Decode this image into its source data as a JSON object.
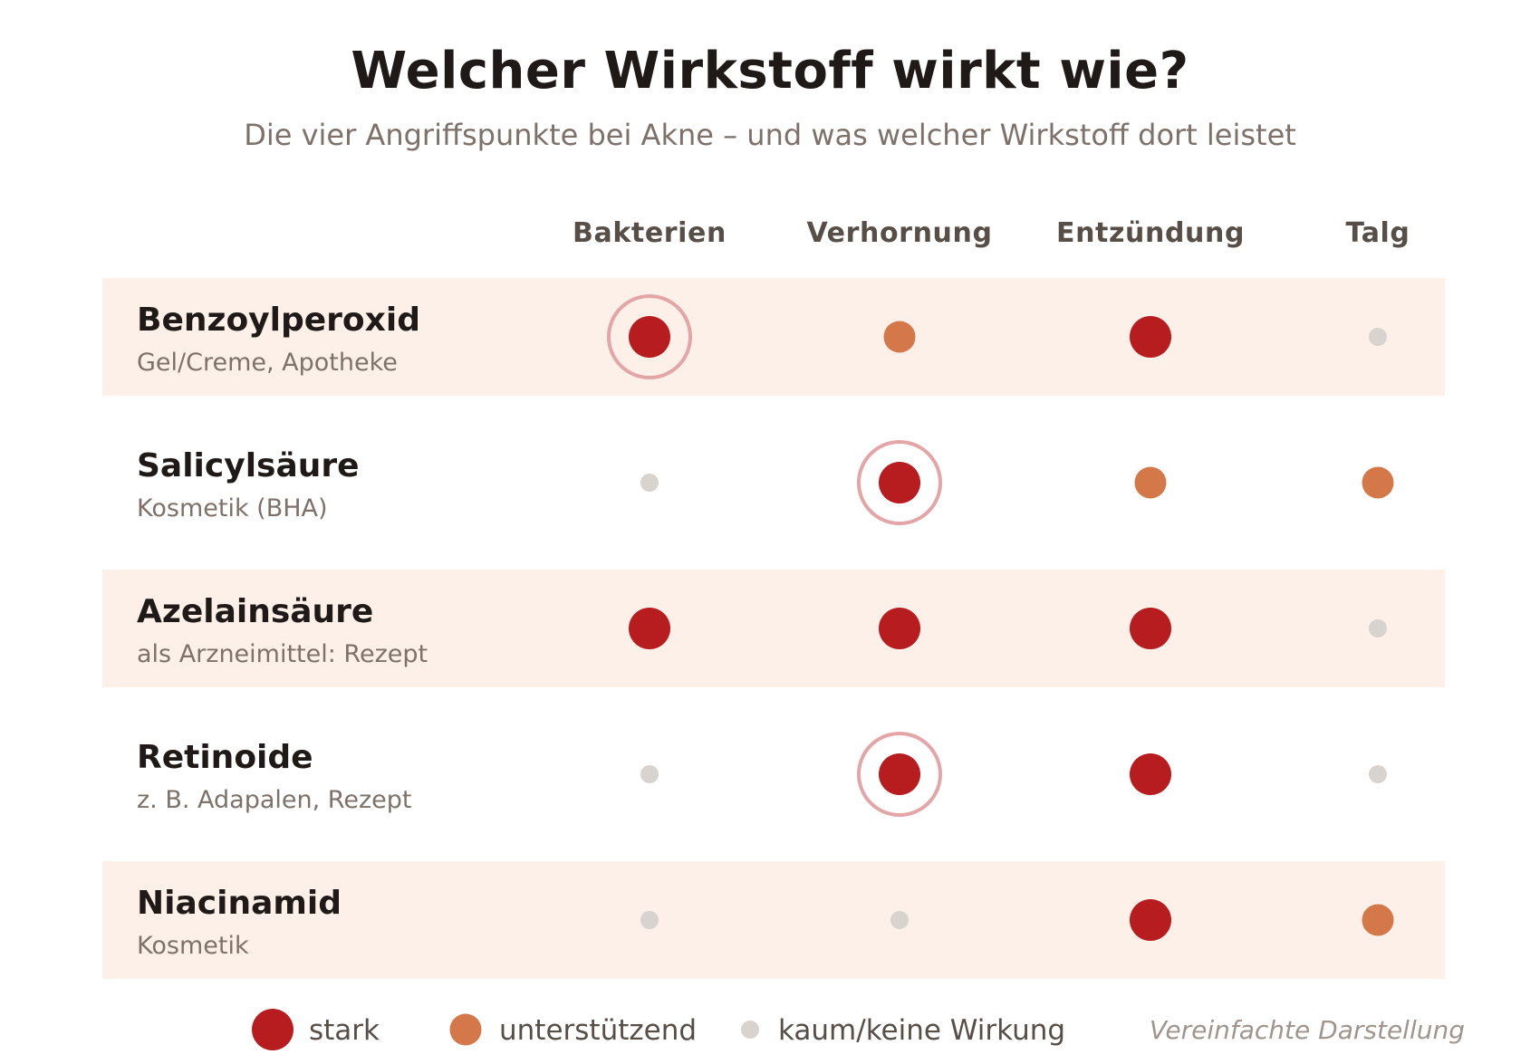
{
  "title": "Welcher Wirkstoff wirkt wie?",
  "subtitle": "Die vier Angriffspunkte bei Akne – und was welcher Wirkstoff dort leistet",
  "colors": {
    "strong": "#b71c1f",
    "support": "#d4784a",
    "none": "#d8d3ce",
    "highlight_ring": "#e3a5a6",
    "row_band": "#fdf0e9"
  },
  "chart_data": {
    "type": "table",
    "columns": [
      "Bakterien",
      "Verhornung",
      "Entzündung",
      "Talg"
    ],
    "rows": [
      {
        "name": "Benzoylperoxid",
        "sub": "Gel/Creme, Apotheke",
        "values": [
          "stark",
          "unterstützend",
          "stark",
          "kaum"
        ],
        "highlight": 0
      },
      {
        "name": "Salicylsäure",
        "sub": "Kosmetik (BHA)",
        "values": [
          "kaum",
          "stark",
          "unterstützend",
          "unterstützend"
        ],
        "highlight": 1
      },
      {
        "name": "Azelainsäure",
        "sub": "als Arzneimittel: Rezept",
        "values": [
          "stark",
          "stark",
          "stark",
          "kaum"
        ],
        "highlight": null
      },
      {
        "name": "Retinoide",
        "sub": "z. B. Adapalen, Rezept",
        "values": [
          "kaum",
          "stark",
          "stark",
          "kaum"
        ],
        "highlight": 1
      },
      {
        "name": "Niacinamid",
        "sub": "Kosmetik",
        "values": [
          "kaum",
          "kaum",
          "stark",
          "unterstützend"
        ],
        "highlight": null
      }
    ],
    "legend": [
      {
        "key": "stark",
        "label": "stark"
      },
      {
        "key": "unterstützend",
        "label": "unterstützend"
      },
      {
        "key": "kaum",
        "label": "kaum/keine Wirkung"
      }
    ],
    "note": "Vereinfachte Darstellung"
  }
}
